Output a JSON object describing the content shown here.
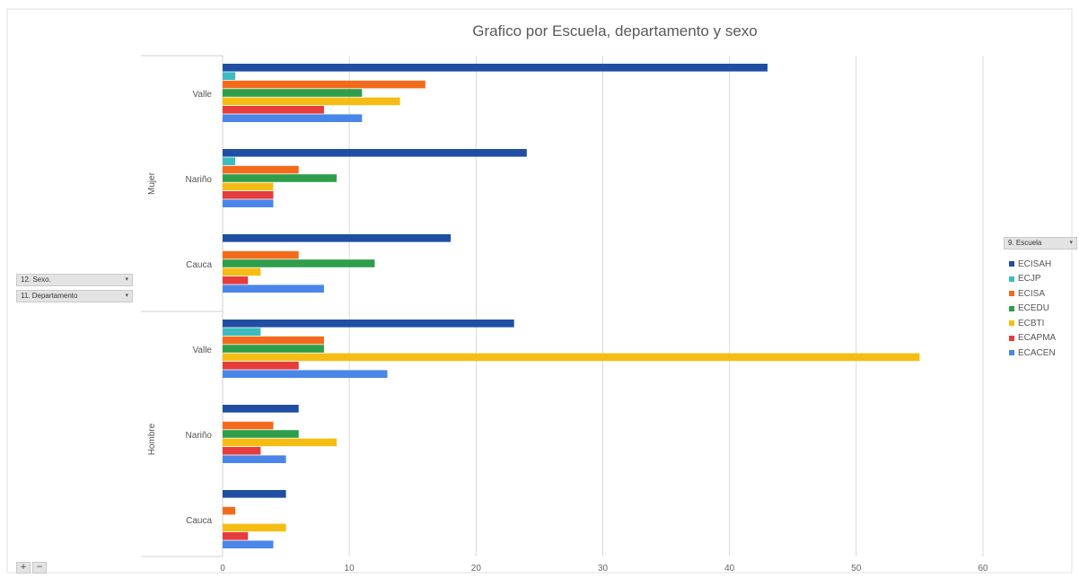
{
  "chart_data": {
    "type": "bar",
    "orientation": "horizontal",
    "title": "Grafico por Escuela, departamento y sexo",
    "xlim": [
      0,
      60
    ],
    "xticks": [
      0,
      10,
      20,
      30,
      40,
      50,
      60
    ],
    "grid": true,
    "legend_position": "right",
    "legend_title": "9. Escuela",
    "groups": [
      {
        "label": "Mujer",
        "categories": [
          {
            "label": "Valle",
            "values": [
              43,
              1,
              16,
              11,
              14,
              8,
              11
            ]
          },
          {
            "label": "Nariño",
            "values": [
              24,
              1,
              6,
              9,
              4,
              4,
              4
            ]
          },
          {
            "label": "Cauca",
            "values": [
              18,
              0,
              6,
              12,
              3,
              2,
              8
            ]
          }
        ]
      },
      {
        "label": "Hombre",
        "categories": [
          {
            "label": "Valle",
            "values": [
              23,
              3,
              8,
              8,
              55,
              6,
              13
            ]
          },
          {
            "label": "Nariño",
            "values": [
              6,
              0,
              4,
              6,
              9,
              3,
              5
            ]
          },
          {
            "label": "Cauca",
            "values": [
              5,
              0,
              1,
              0,
              5,
              2,
              4
            ]
          }
        ]
      }
    ],
    "series": [
      {
        "name": "ECISAH",
        "color": "#1f4ea3"
      },
      {
        "name": "ECJP",
        "color": "#3cbcc0"
      },
      {
        "name": "ECISA",
        "color": "#f26b1d"
      },
      {
        "name": "ECEDU",
        "color": "#2e9e4a"
      },
      {
        "name": "ECBTI",
        "color": "#f5bd14"
      },
      {
        "name": "ECAPMA",
        "color": "#e63c3c"
      },
      {
        "name": "ECACEN",
        "color": "#4a86e8"
      }
    ]
  },
  "field_buttons": {
    "sexo": "12. Sexo.",
    "departamento": "11. Departamento",
    "escuela": "9. Escuela"
  },
  "icons": {
    "dropdown": "▾",
    "zoom_in": "+",
    "zoom_out": "−"
  }
}
